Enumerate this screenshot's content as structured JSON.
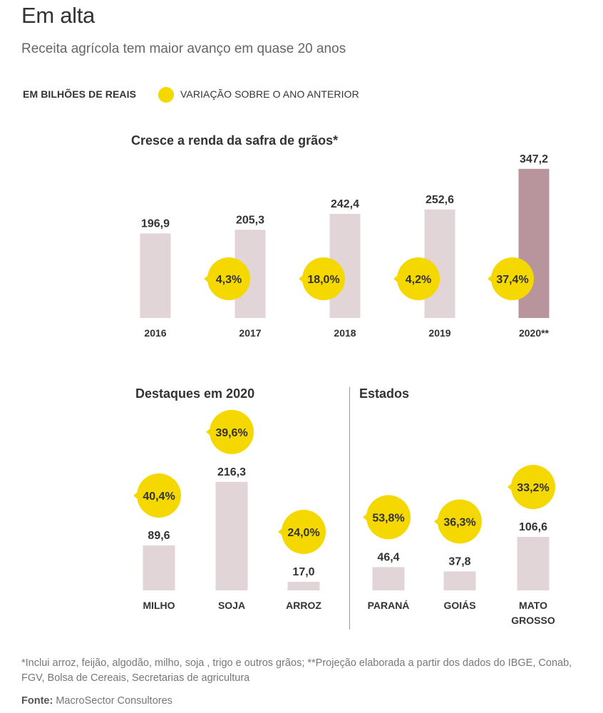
{
  "header": {
    "title": "Em alta",
    "subtitle": "Receita agrícola tem maior avanço em quase 20 anos",
    "legend_units": "EM BILHÕES DE REAIS",
    "legend_variation": "VARIAÇÃO SOBRE O ANO ANTERIOR"
  },
  "colors": {
    "bar": "#E1D5D7",
    "bar_highlight": "#B8959C",
    "bubble": "#F5D800"
  },
  "chart_data": [
    {
      "type": "bar",
      "title": "Cresce a renda da safra de grãos*",
      "categories": [
        "2016",
        "2017",
        "2018",
        "2019",
        "2020**"
      ],
      "values": [
        196.9,
        205.3,
        242.4,
        252.6,
        347.2
      ],
      "value_labels": [
        "196,9",
        "205,3",
        "242,4",
        "252,6",
        "347,2"
      ],
      "variation": [
        null,
        4.3,
        18.0,
        4.2,
        37.4
      ],
      "variation_labels": [
        "",
        "4,3%",
        "18,0%",
        "4,2%",
        "37,4%"
      ],
      "highlight_index": 4
    },
    {
      "type": "bar",
      "title": "Destaques em 2020",
      "categories": [
        "MILHO",
        "SOJA",
        "ARROZ"
      ],
      "values": [
        89.6,
        216.3,
        17.0
      ],
      "value_labels": [
        "89,6",
        "216,3",
        "17,0"
      ],
      "variation": [
        40.4,
        39.6,
        24.0
      ],
      "variation_labels": [
        "40,4%",
        "39,6%",
        "24,0%"
      ]
    },
    {
      "type": "bar",
      "title": "Estados",
      "categories": [
        "PARANÁ",
        "GOIÁS",
        "MATO GROSSO"
      ],
      "category_lines": [
        [
          "PARANÁ"
        ],
        [
          "GOIÁS"
        ],
        [
          "MATO",
          "GROSSO"
        ]
      ],
      "values": [
        46.4,
        37.8,
        106.6
      ],
      "value_labels": [
        "46,4",
        "37,8",
        "106,6"
      ],
      "variation": [
        53.8,
        36.3,
        33.2
      ],
      "variation_labels": [
        "53,8%",
        "36,3%",
        "33,2%"
      ]
    }
  ],
  "footer": {
    "footnote": "*Inclui arroz, feijão, algodão, milho, soja , trigo e outros grãos; **Projeção elaborada a partir dos dados do IBGE, Conab, FGV, Bolsa de Cereais, Secretarias de agricultura",
    "source_label": "Fonte:",
    "source_text": "MacroSector Consultores"
  }
}
